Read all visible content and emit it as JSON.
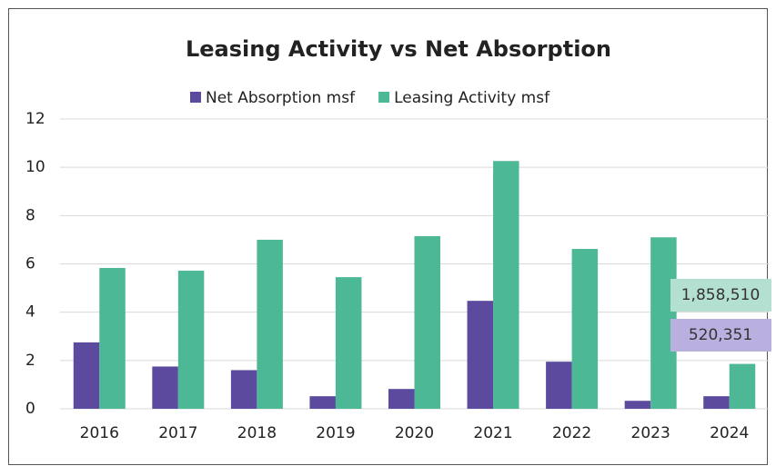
{
  "chart_data": {
    "type": "bar",
    "title": "Leasing Activity vs Net Absorption",
    "categories": [
      "2016",
      "2017",
      "2018",
      "2019",
      "2020",
      "2021",
      "2022",
      "2023",
      "2024"
    ],
    "series": [
      {
        "name": "Net Absorption msf",
        "color": "#5b4a9e",
        "label_background": "#b9b0e0",
        "values": [
          2.75,
          1.75,
          1.6,
          0.52,
          0.82,
          4.47,
          1.95,
          0.33,
          0.520351
        ],
        "value_labels": [
          null,
          null,
          null,
          null,
          null,
          null,
          null,
          null,
          "520,351"
        ]
      },
      {
        "name": "Leasing Activity msf",
        "color": "#4db896",
        "label_background": "#b3e0d0",
        "values": [
          5.83,
          5.72,
          7.0,
          5.45,
          7.15,
          10.26,
          6.62,
          7.1,
          1.85851
        ],
        "value_labels": [
          null,
          null,
          null,
          null,
          null,
          null,
          null,
          null,
          "1,858,510"
        ]
      }
    ],
    "ylim": [
      0,
      12
    ],
    "yticks": [
      0,
      2,
      4,
      6,
      8,
      10,
      12
    ],
    "grid": true,
    "legend": "top"
  }
}
